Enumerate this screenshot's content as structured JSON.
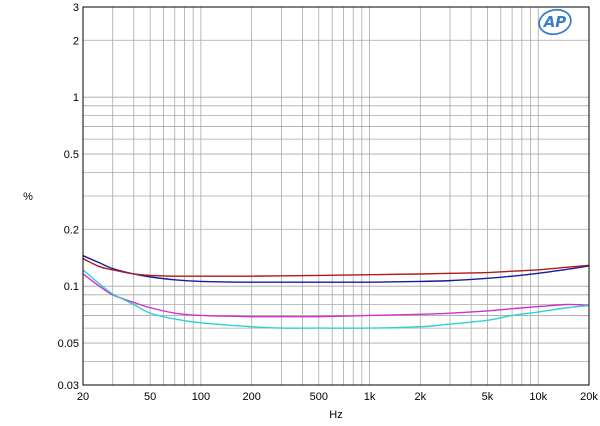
{
  "chart_data": {
    "type": "line",
    "title": "",
    "xlabel": "Hz",
    "ylabel": "%",
    "xscale": "log",
    "yscale": "log",
    "xlim": [
      20,
      20000
    ],
    "ylim": [
      0.03,
      3
    ],
    "grid": true,
    "legend": "none",
    "logo_text": "AP",
    "x_ticks": [
      {
        "value": 20,
        "label": "20"
      },
      {
        "value": 50,
        "label": "50"
      },
      {
        "value": 100,
        "label": "100"
      },
      {
        "value": 200,
        "label": "200"
      },
      {
        "value": 500,
        "label": "500"
      },
      {
        "value": 1000,
        "label": "1k"
      },
      {
        "value": 2000,
        "label": "2k"
      },
      {
        "value": 5000,
        "label": "5k"
      },
      {
        "value": 10000,
        "label": "10k"
      },
      {
        "value": 20000,
        "label": "20k"
      }
    ],
    "y_ticks": [
      {
        "value": 3,
        "label": "3"
      },
      {
        "value": 2,
        "label": "2"
      },
      {
        "value": 1,
        "label": "1"
      },
      {
        "value": 0.5,
        "label": "0.5"
      },
      {
        "value": 0.2,
        "label": "0.2"
      },
      {
        "value": 0.1,
        "label": "0.1"
      },
      {
        "value": 0.05,
        "label": "0.05"
      },
      {
        "value": 0.03,
        "label": "0.03"
      }
    ],
    "series": [
      {
        "color": "#1a1aa0",
        "points": [
          [
            20,
            0.145
          ],
          [
            25,
            0.133
          ],
          [
            30,
            0.124
          ],
          [
            40,
            0.116
          ],
          [
            50,
            0.112
          ],
          [
            70,
            0.108
          ],
          [
            100,
            0.106
          ],
          [
            200,
            0.105
          ],
          [
            500,
            0.105
          ],
          [
            1000,
            0.105
          ],
          [
            2000,
            0.106
          ],
          [
            3000,
            0.107
          ],
          [
            5000,
            0.11
          ],
          [
            7000,
            0.113
          ],
          [
            10000,
            0.117
          ],
          [
            15000,
            0.123
          ],
          [
            20000,
            0.128
          ]
        ]
      },
      {
        "color": "#b01a1a",
        "points": [
          [
            20,
            0.14
          ],
          [
            25,
            0.127
          ],
          [
            30,
            0.122
          ],
          [
            40,
            0.116
          ],
          [
            50,
            0.114
          ],
          [
            70,
            0.113
          ],
          [
            100,
            0.113
          ],
          [
            200,
            0.113
          ],
          [
            500,
            0.114
          ],
          [
            1000,
            0.115
          ],
          [
            2000,
            0.116
          ],
          [
            3000,
            0.117
          ],
          [
            5000,
            0.118
          ],
          [
            7000,
            0.12
          ],
          [
            10000,
            0.122
          ],
          [
            15000,
            0.126
          ],
          [
            20000,
            0.129
          ]
        ]
      },
      {
        "color": "#d030d0",
        "points": [
          [
            20,
            0.116
          ],
          [
            25,
            0.1
          ],
          [
            30,
            0.09
          ],
          [
            40,
            0.082
          ],
          [
            50,
            0.077
          ],
          [
            70,
            0.072
          ],
          [
            100,
            0.07
          ],
          [
            200,
            0.069
          ],
          [
            300,
            0.069
          ],
          [
            500,
            0.069
          ],
          [
            1000,
            0.07
          ],
          [
            2000,
            0.071
          ],
          [
            3000,
            0.072
          ],
          [
            5000,
            0.074
          ],
          [
            7000,
            0.076
          ],
          [
            10000,
            0.078
          ],
          [
            15000,
            0.08
          ],
          [
            20000,
            0.079
          ]
        ]
      },
      {
        "color": "#30d0d0",
        "points": [
          [
            20,
            0.122
          ],
          [
            25,
            0.103
          ],
          [
            30,
            0.091
          ],
          [
            40,
            0.08
          ],
          [
            50,
            0.072
          ],
          [
            70,
            0.067
          ],
          [
            100,
            0.064
          ],
          [
            200,
            0.061
          ],
          [
            300,
            0.06
          ],
          [
            500,
            0.06
          ],
          [
            1000,
            0.06
          ],
          [
            2000,
            0.061
          ],
          [
            3000,
            0.063
          ],
          [
            5000,
            0.066
          ],
          [
            7000,
            0.07
          ],
          [
            10000,
            0.073
          ],
          [
            15000,
            0.077
          ],
          [
            20000,
            0.079
          ]
        ]
      }
    ]
  }
}
